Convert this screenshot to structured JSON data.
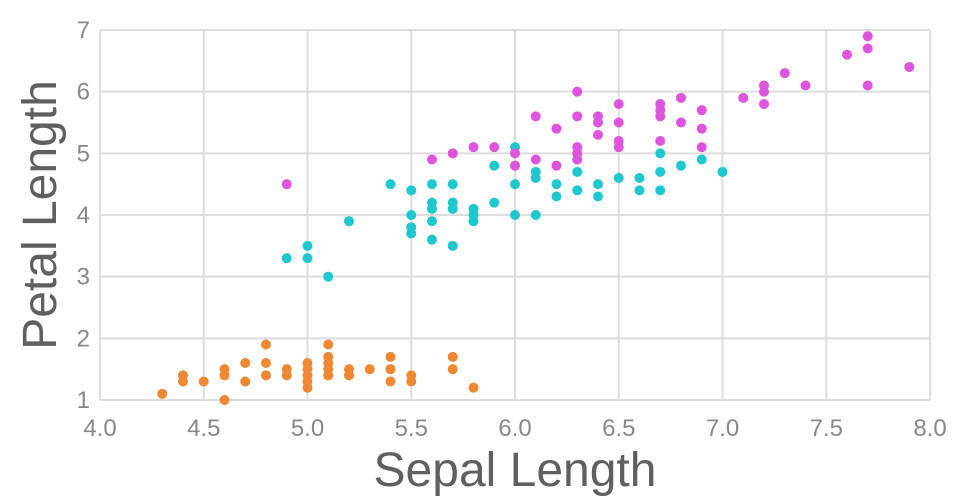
{
  "chart_data": {
    "type": "scatter",
    "title": "",
    "xlabel": "Sepal Length",
    "ylabel": "Petal Length",
    "xlim": [
      4.0,
      8.0
    ],
    "ylim": [
      1,
      7
    ],
    "x_ticks": [
      "4.0",
      "4.5",
      "5.0",
      "5.5",
      "6.0",
      "6.5",
      "7.0",
      "7.5",
      "8.0"
    ],
    "y_ticks": [
      "1",
      "2",
      "3",
      "4",
      "5",
      "6",
      "7"
    ],
    "grid": true,
    "legend": "none",
    "series": [
      {
        "color": "#ee8833",
        "points": [
          [
            4.3,
            1.1
          ],
          [
            4.4,
            1.3
          ],
          [
            4.4,
            1.4
          ],
          [
            4.5,
            1.3
          ],
          [
            4.6,
            1.0
          ],
          [
            4.6,
            1.4
          ],
          [
            4.6,
            1.5
          ],
          [
            4.7,
            1.3
          ],
          [
            4.7,
            1.6
          ],
          [
            4.8,
            1.4
          ],
          [
            4.8,
            1.6
          ],
          [
            4.8,
            1.9
          ],
          [
            4.9,
            1.4
          ],
          [
            4.9,
            1.5
          ],
          [
            5.0,
            1.2
          ],
          [
            5.0,
            1.3
          ],
          [
            5.0,
            1.4
          ],
          [
            5.0,
            1.5
          ],
          [
            5.0,
            1.6
          ],
          [
            5.1,
            1.4
          ],
          [
            5.1,
            1.5
          ],
          [
            5.1,
            1.6
          ],
          [
            5.1,
            1.7
          ],
          [
            5.1,
            1.9
          ],
          [
            5.2,
            1.4
          ],
          [
            5.2,
            1.5
          ],
          [
            5.3,
            1.5
          ],
          [
            5.4,
            1.3
          ],
          [
            5.4,
            1.5
          ],
          [
            5.4,
            1.7
          ],
          [
            5.5,
            1.3
          ],
          [
            5.5,
            1.4
          ],
          [
            5.7,
            1.5
          ],
          [
            5.7,
            1.7
          ],
          [
            5.8,
            1.2
          ]
        ]
      },
      {
        "color": "#1fc8cc",
        "points": [
          [
            4.9,
            3.3
          ],
          [
            5.0,
            3.3
          ],
          [
            5.0,
            3.5
          ],
          [
            5.1,
            3.0
          ],
          [
            5.2,
            3.9
          ],
          [
            5.4,
            4.5
          ],
          [
            5.5,
            3.7
          ],
          [
            5.5,
            3.8
          ],
          [
            5.5,
            4.0
          ],
          [
            5.5,
            4.4
          ],
          [
            5.6,
            3.6
          ],
          [
            5.6,
            3.9
          ],
          [
            5.6,
            4.1
          ],
          [
            5.6,
            4.2
          ],
          [
            5.6,
            4.5
          ],
          [
            5.7,
            3.5
          ],
          [
            5.7,
            4.1
          ],
          [
            5.7,
            4.2
          ],
          [
            5.7,
            4.5
          ],
          [
            5.8,
            3.9
          ],
          [
            5.8,
            4.0
          ],
          [
            5.8,
            4.1
          ],
          [
            5.9,
            4.2
          ],
          [
            5.9,
            4.8
          ],
          [
            6.0,
            4.0
          ],
          [
            6.0,
            4.5
          ],
          [
            6.0,
            5.1
          ],
          [
            6.1,
            4.0
          ],
          [
            6.1,
            4.6
          ],
          [
            6.1,
            4.7
          ],
          [
            6.2,
            4.3
          ],
          [
            6.2,
            4.5
          ],
          [
            6.3,
            4.4
          ],
          [
            6.3,
            4.7
          ],
          [
            6.3,
            4.9
          ],
          [
            6.4,
            4.3
          ],
          [
            6.4,
            4.5
          ],
          [
            6.5,
            4.6
          ],
          [
            6.6,
            4.4
          ],
          [
            6.6,
            4.6
          ],
          [
            6.7,
            4.4
          ],
          [
            6.7,
            4.7
          ],
          [
            6.7,
            5.0
          ],
          [
            6.8,
            4.8
          ],
          [
            6.9,
            4.9
          ],
          [
            7.0,
            4.7
          ]
        ]
      },
      {
        "color": "#dd55dd",
        "points": [
          [
            4.9,
            4.5
          ],
          [
            5.6,
            4.9
          ],
          [
            5.7,
            5.0
          ],
          [
            5.8,
            5.1
          ],
          [
            5.9,
            5.1
          ],
          [
            6.0,
            4.8
          ],
          [
            6.0,
            5.0
          ],
          [
            6.1,
            4.9
          ],
          [
            6.1,
            5.6
          ],
          [
            6.2,
            4.8
          ],
          [
            6.2,
            5.4
          ],
          [
            6.3,
            4.9
          ],
          [
            6.3,
            5.0
          ],
          [
            6.3,
            5.1
          ],
          [
            6.3,
            5.6
          ],
          [
            6.3,
            6.0
          ],
          [
            6.4,
            5.3
          ],
          [
            6.4,
            5.5
          ],
          [
            6.4,
            5.6
          ],
          [
            6.5,
            5.1
          ],
          [
            6.5,
            5.2
          ],
          [
            6.5,
            5.5
          ],
          [
            6.5,
            5.8
          ],
          [
            6.7,
            5.2
          ],
          [
            6.7,
            5.6
          ],
          [
            6.7,
            5.7
          ],
          [
            6.7,
            5.8
          ],
          [
            6.8,
            5.5
          ],
          [
            6.8,
            5.9
          ],
          [
            6.9,
            5.1
          ],
          [
            6.9,
            5.4
          ],
          [
            6.9,
            5.7
          ],
          [
            7.1,
            5.9
          ],
          [
            7.2,
            5.8
          ],
          [
            7.2,
            6.0
          ],
          [
            7.2,
            6.1
          ],
          [
            7.3,
            6.3
          ],
          [
            7.4,
            6.1
          ],
          [
            7.6,
            6.6
          ],
          [
            7.7,
            6.1
          ],
          [
            7.7,
            6.7
          ],
          [
            7.7,
            6.9
          ],
          [
            7.9,
            6.4
          ]
        ]
      }
    ]
  }
}
